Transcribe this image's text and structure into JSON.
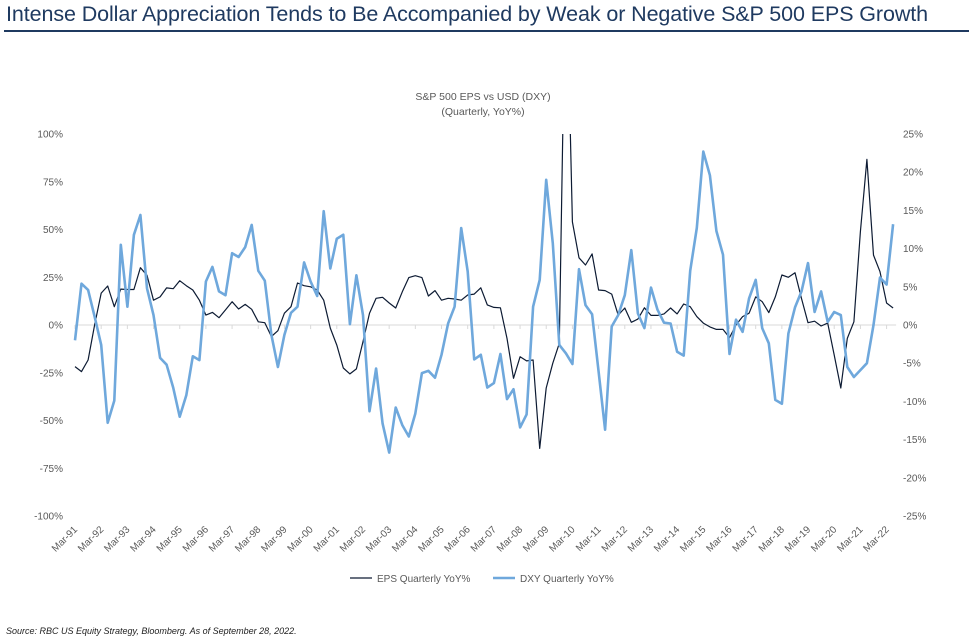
{
  "header": {
    "title": "Intense Dollar Appreciation Tends to Be Accompanied by Weak or Negative S&P 500 EPS Growth"
  },
  "footer": {
    "source": "Source: RBC US Equity Strategy, Bloomberg. As of September 28, 2022."
  },
  "chart_data": {
    "type": "line",
    "title": "S&P 500 EPS vs USD (DXY)",
    "subtitle": "(Quarterly, YoY%)",
    "xlabel": "",
    "ylabel": "",
    "x_start": "Mar-91",
    "x_end": "Jun-22",
    "x_frequency": "quarterly",
    "x_tick_labels": [
      "Mar-91",
      "Mar-92",
      "Mar-93",
      "Mar-94",
      "Mar-95",
      "Mar-96",
      "Mar-97",
      "Mar-98",
      "Mar-99",
      "Mar-00",
      "Mar-01",
      "Mar-02",
      "Mar-03",
      "Mar-04",
      "Mar-05",
      "Mar-06",
      "Mar-07",
      "Mar-08",
      "Mar-09",
      "Mar-10",
      "Mar-11",
      "Mar-12",
      "Mar-13",
      "Mar-14",
      "Mar-15",
      "Mar-16",
      "Mar-17",
      "Mar-18",
      "Mar-19",
      "Mar-20",
      "Mar-21",
      "Mar-22"
    ],
    "y_left": {
      "ylim": [
        -100,
        100
      ],
      "ticks": [
        "100%",
        "75%",
        "50%",
        "25%",
        "0%",
        "-25%",
        "-50%",
        "-75%",
        "-100%"
      ]
    },
    "y_right": {
      "ylim": [
        -25,
        25
      ],
      "ticks": [
        "25%",
        "20%",
        "15%",
        "10%",
        "5%",
        "0%",
        "-5%",
        "-10%",
        "-15%",
        "-20%",
        "-25%"
      ]
    },
    "grid": false,
    "legend_position": "bottom",
    "series": [
      {
        "name": "EPS Quarterly YoY%",
        "axis": "left",
        "color": "#0d1b33",
        "values": [
          -21.8,
          -24.4,
          -18.3,
          0,
          16.7,
          20.4,
          9.6,
          18.8,
          18.6,
          18.6,
          30,
          26,
          13,
          14.7,
          19.4,
          19,
          23.2,
          20.6,
          18.3,
          13,
          5.2,
          6.6,
          3.8,
          7.9,
          12.2,
          8.4,
          10.8,
          8.2,
          1.7,
          1.2,
          -6,
          -3,
          6.2,
          9.6,
          22,
          20.6,
          20,
          18.3,
          13,
          -1.6,
          -10.5,
          -22.5,
          -25.6,
          -23,
          -8.7,
          6.2,
          14,
          14.5,
          11.5,
          8.9,
          17.4,
          24.8,
          25.8,
          24.8,
          15.2,
          18,
          13,
          14,
          13.6,
          13,
          15.7,
          16.2,
          19.5,
          10.5,
          9.2,
          9,
          -7,
          -27.9,
          -16.6,
          -18.8,
          -18.3,
          -64.6,
          -33,
          -20,
          -9.6,
          200,
          54,
          35.2,
          31.4,
          37.2,
          18.3,
          18,
          16.2,
          5.2,
          8.9,
          1.4,
          3.1,
          9,
          5,
          5,
          5.8,
          8.9,
          5.8,
          11,
          9.6,
          4.4,
          1,
          -1,
          -2.3,
          -2.3,
          -6.6,
          0,
          4.4,
          6.2,
          14.7,
          12.2,
          6.5,
          14.7,
          26.2,
          25,
          27.4,
          13.9,
          1.2,
          2,
          -0.5,
          1,
          -15.7,
          -33,
          -7,
          1.7,
          48.9,
          86.7,
          36.6,
          27.9,
          11.5,
          8.9
        ]
      },
      {
        "name": "DXY Quarterly YoY%",
        "axis": "right",
        "color": "#6fa8dc",
        "values": [
          -2,
          5.4,
          4.6,
          1.1,
          -2.6,
          -12.8,
          -9.9,
          10.5,
          2.4,
          11.8,
          14.4,
          4.8,
          1.3,
          -4.3,
          -5.2,
          -8.2,
          -12,
          -9.2,
          -4.1,
          -4.6,
          5.7,
          7.6,
          4.4,
          3.9,
          9.4,
          8.9,
          10.2,
          13.1,
          7.1,
          5.8,
          -1.3,
          -5.5,
          -1.3,
          1.6,
          2.4,
          8.2,
          5.7,
          3.8,
          14.9,
          7.4,
          11.3,
          11.8,
          0.1,
          6.5,
          1.3,
          -11.3,
          -5.7,
          -12.9,
          -16.7,
          -10.8,
          -13.1,
          -14.6,
          -11.6,
          -6.3,
          -6,
          -6.9,
          -3.9,
          0.2,
          2.4,
          12.7,
          7,
          -4.5,
          -3.9,
          -8.2,
          -7.6,
          -3.8,
          -9.7,
          -8.4,
          -13.4,
          -11.7,
          2.4,
          5.9,
          19,
          10.7,
          -2.6,
          -3.7,
          -5.1,
          7.3,
          2.6,
          1.4,
          -6.1,
          -13.7,
          -0.2,
          1.3,
          3.9,
          9.8,
          1.5,
          -0.4,
          4.9,
          2,
          0.3,
          0.2,
          -3.5,
          -4,
          7.1,
          12.7,
          22.7,
          19.6,
          12.3,
          9.2,
          -3.8,
          0.7,
          -0.9,
          3.5,
          5.9,
          -0.4,
          -2.4,
          -9.8,
          -10.3,
          -1.1,
          2.3,
          4.4,
          8.1,
          1.7,
          4.4,
          0.4,
          1.7,
          1.3,
          -5.5,
          -6.8,
          -5.9,
          -5,
          0,
          6.2,
          5.3,
          13.2
        ]
      }
    ]
  }
}
